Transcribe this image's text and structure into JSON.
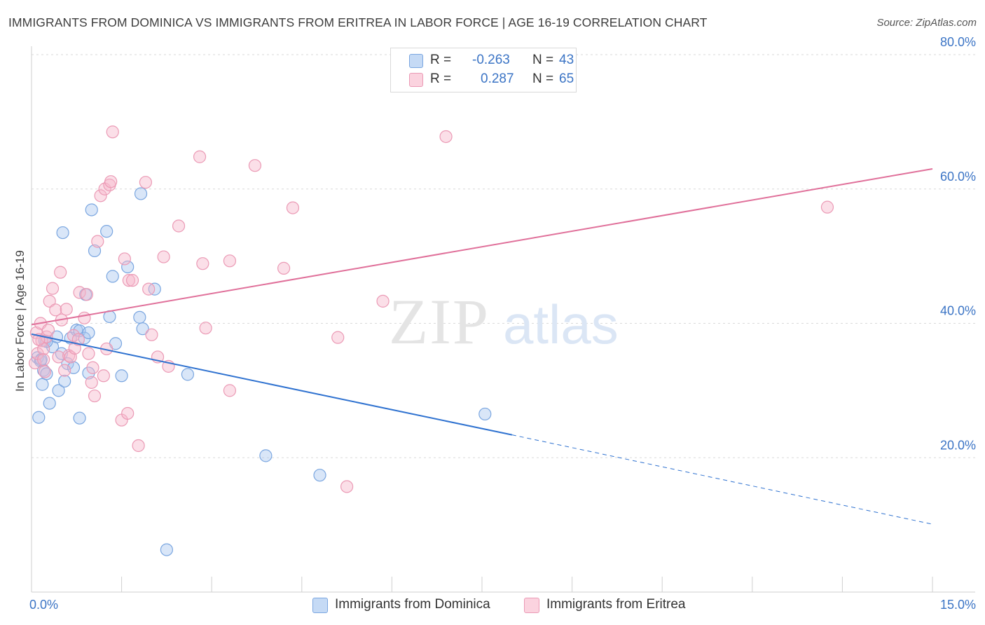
{
  "title": "IMMIGRANTS FROM DOMINICA VS IMMIGRANTS FROM ERITREA IN LABOR FORCE | AGE 16-19 CORRELATION CHART",
  "source": "Source: ZipAtlas.com",
  "watermark": {
    "zip": "ZIP",
    "atlas": "atlas"
  },
  "colors": {
    "dominica_fill": "#aac8f0",
    "dominica_stroke": "#7aa6e0",
    "dominica_line": "#2f72d0",
    "eritrea_fill": "#f6b8cb",
    "eritrea_stroke": "#eb9ab5",
    "eritrea_line": "#e0709a",
    "tick_text": "#3b74c5",
    "grid": "#d9d9d9"
  },
  "legend": {
    "rows": [
      {
        "r_label": "R =",
        "r_value": "-0.263",
        "n_label": "N =",
        "n_value": "43"
      },
      {
        "r_label": "R =",
        "r_value": "0.287",
        "n_label": "N =",
        "n_value": "65"
      }
    ]
  },
  "bottom_legend": {
    "dominica": "Immigrants from Dominica",
    "eritrea": "Immigrants from Eritrea"
  },
  "chart_data": {
    "type": "scatter",
    "title": "IMMIGRANTS FROM DOMINICA VS IMMIGRANTS FROM ERITREA IN LABOR FORCE | AGE 16-19 CORRELATION CHART",
    "xlabel": "",
    "ylabel": "In Labor Force | Age 16-19",
    "xlim": [
      0,
      15
    ],
    "ylim": [
      0,
      80
    ],
    "x_tick_labels": [
      "0.0%",
      "15.0%"
    ],
    "y_ticks": [
      20,
      40,
      60,
      80
    ],
    "y_tick_labels": [
      "20.0%",
      "40.0%",
      "60.0%",
      "80.0%"
    ],
    "series": [
      {
        "name": "Immigrants from Dominica",
        "R": -0.263,
        "N": 43,
        "trend": {
          "x0": 0,
          "y0": 38.4,
          "x1": 8.0,
          "y1": 23.4,
          "dashed_to_x": 15,
          "dashed_to_y": 10.1
        },
        "points": [
          [
            0.1,
            34.9
          ],
          [
            0.12,
            26.0
          ],
          [
            0.15,
            34.4
          ],
          [
            0.18,
            30.9
          ],
          [
            0.2,
            33.0
          ],
          [
            0.22,
            37.4
          ],
          [
            0.25,
            32.5
          ],
          [
            0.3,
            28.1
          ],
          [
            0.35,
            36.5
          ],
          [
            0.42,
            38.0
          ],
          [
            0.45,
            30.0
          ],
          [
            0.5,
            35.5
          ],
          [
            0.52,
            53.5
          ],
          [
            0.55,
            31.4
          ],
          [
            0.6,
            34.0
          ],
          [
            0.65,
            37.8
          ],
          [
            0.7,
            33.4
          ],
          [
            0.75,
            39.0
          ],
          [
            0.8,
            38.9
          ],
          [
            0.8,
            25.9
          ],
          [
            0.88,
            37.8
          ],
          [
            0.9,
            44.3
          ],
          [
            0.95,
            32.6
          ],
          [
            0.95,
            38.6
          ],
          [
            1.0,
            56.9
          ],
          [
            1.05,
            50.8
          ],
          [
            1.25,
            53.7
          ],
          [
            1.3,
            41.0
          ],
          [
            1.35,
            47.0
          ],
          [
            1.4,
            37.0
          ],
          [
            1.5,
            32.2
          ],
          [
            1.6,
            48.4
          ],
          [
            1.8,
            40.9
          ],
          [
            1.82,
            59.3
          ],
          [
            1.85,
            39.2
          ],
          [
            2.05,
            45.1
          ],
          [
            2.25,
            6.3
          ],
          [
            2.6,
            32.4
          ],
          [
            3.9,
            20.3
          ],
          [
            4.8,
            17.4
          ],
          [
            7.55,
            26.5
          ],
          [
            0.16,
            34.6
          ],
          [
            0.25,
            37.3
          ]
        ]
      },
      {
        "name": "Immigrants from Eritrea",
        "R": 0.287,
        "N": 65,
        "trend": {
          "x0": 0,
          "y0": 39.8,
          "x1": 15,
          "y1": 63.0
        },
        "points": [
          [
            0.06,
            34.1
          ],
          [
            0.08,
            38.6
          ],
          [
            0.1,
            35.5
          ],
          [
            0.15,
            40.0
          ],
          [
            0.17,
            37.4
          ],
          [
            0.2,
            36.2
          ],
          [
            0.2,
            34.6
          ],
          [
            0.22,
            32.8
          ],
          [
            0.25,
            38.0
          ],
          [
            0.28,
            39.0
          ],
          [
            0.3,
            43.3
          ],
          [
            0.35,
            45.2
          ],
          [
            0.4,
            42.0
          ],
          [
            0.45,
            35.0
          ],
          [
            0.48,
            47.6
          ],
          [
            0.5,
            40.5
          ],
          [
            0.55,
            33.0
          ],
          [
            0.58,
            42.1
          ],
          [
            0.62,
            35.2
          ],
          [
            0.65,
            35.0
          ],
          [
            0.7,
            38.2
          ],
          [
            0.72,
            36.3
          ],
          [
            0.78,
            37.6
          ],
          [
            0.8,
            44.6
          ],
          [
            0.88,
            40.8
          ],
          [
            0.92,
            44.3
          ],
          [
            0.95,
            35.5
          ],
          [
            1.0,
            31.2
          ],
          [
            1.02,
            33.4
          ],
          [
            1.05,
            29.2
          ],
          [
            1.1,
            52.2
          ],
          [
            1.15,
            59.0
          ],
          [
            1.2,
            32.2
          ],
          [
            1.22,
            60.0
          ],
          [
            1.25,
            36.2
          ],
          [
            1.3,
            60.6
          ],
          [
            1.32,
            61.1
          ],
          [
            1.35,
            68.5
          ],
          [
            1.5,
            25.6
          ],
          [
            1.55,
            49.6
          ],
          [
            1.6,
            26.6
          ],
          [
            1.62,
            46.4
          ],
          [
            1.68,
            46.4
          ],
          [
            1.78,
            21.8
          ],
          [
            1.9,
            61.0
          ],
          [
            1.95,
            45.1
          ],
          [
            2.0,
            38.3
          ],
          [
            2.1,
            35.0
          ],
          [
            2.2,
            49.9
          ],
          [
            2.28,
            33.6
          ],
          [
            2.45,
            54.5
          ],
          [
            2.8,
            64.8
          ],
          [
            2.85,
            48.9
          ],
          [
            2.9,
            39.3
          ],
          [
            3.3,
            30.0
          ],
          [
            3.3,
            49.3
          ],
          [
            3.72,
            63.5
          ],
          [
            4.2,
            48.2
          ],
          [
            4.35,
            57.2
          ],
          [
            5.1,
            37.9
          ],
          [
            5.25,
            15.7
          ],
          [
            5.85,
            43.3
          ],
          [
            6.9,
            67.8
          ],
          [
            13.25,
            57.3
          ],
          [
            0.12,
            37.6
          ]
        ]
      }
    ]
  }
}
